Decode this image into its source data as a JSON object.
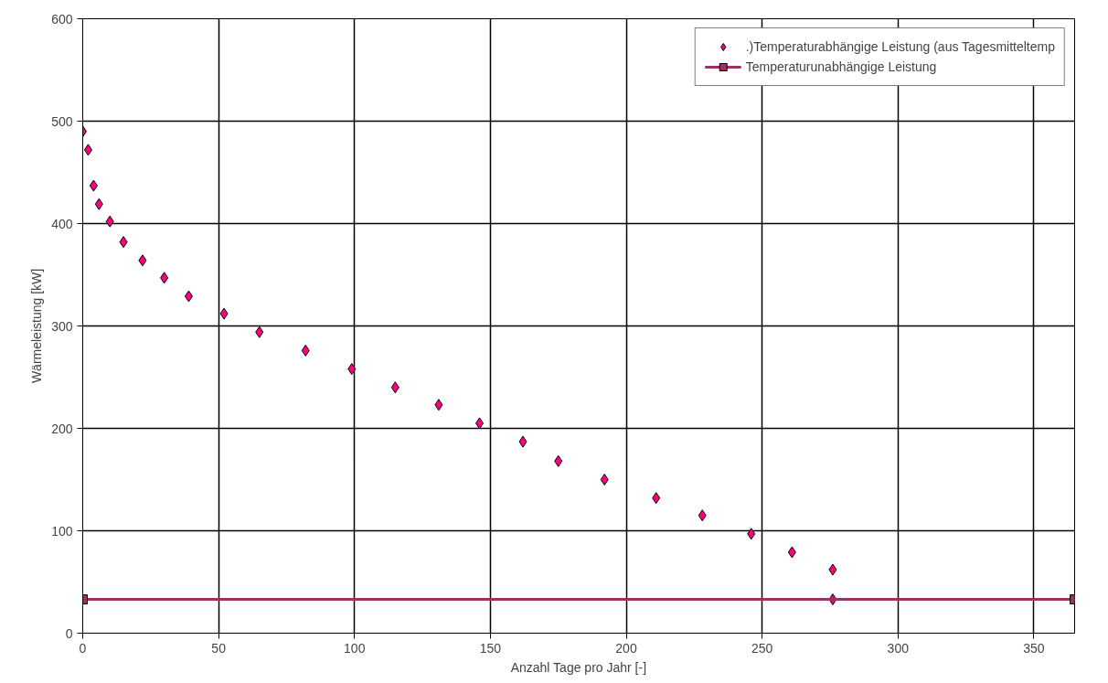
{
  "chart_data": {
    "type": "scatter",
    "xlabel": "Anzahl Tage pro Jahr [-]",
    "ylabel": "Wärmeleistung [kW]",
    "xlim": [
      0,
      365
    ],
    "xticks": [
      0,
      50,
      100,
      150,
      200,
      250,
      300,
      350
    ],
    "ylim": [
      0,
      600
    ],
    "yticks": [
      0,
      100,
      200,
      300,
      400,
      500,
      600
    ],
    "grid": true,
    "legend": "top right",
    "series": [
      {
        "name": ".)Temperaturabhängige Leistung (aus Tagesmitteltemp",
        "marker": "diamond",
        "color": "#ff0080",
        "x": [
          0,
          2,
          4,
          6,
          10,
          15,
          22,
          30,
          39,
          52,
          65,
          82,
          99,
          115,
          131,
          146,
          162,
          175,
          192,
          211,
          228,
          246,
          261,
          276,
          276
        ],
        "values": [
          490,
          472,
          437,
          419,
          402,
          382,
          364,
          347,
          329,
          312,
          294,
          276,
          258,
          240,
          223,
          205,
          187,
          168,
          150,
          132,
          115,
          97,
          79,
          62,
          33
        ]
      },
      {
        "name": "Temperaturunabhängige Leistung",
        "type": "line",
        "marker": "square",
        "color": "#993366",
        "x": [
          0,
          365
        ],
        "values": [
          33,
          33
        ]
      }
    ]
  }
}
